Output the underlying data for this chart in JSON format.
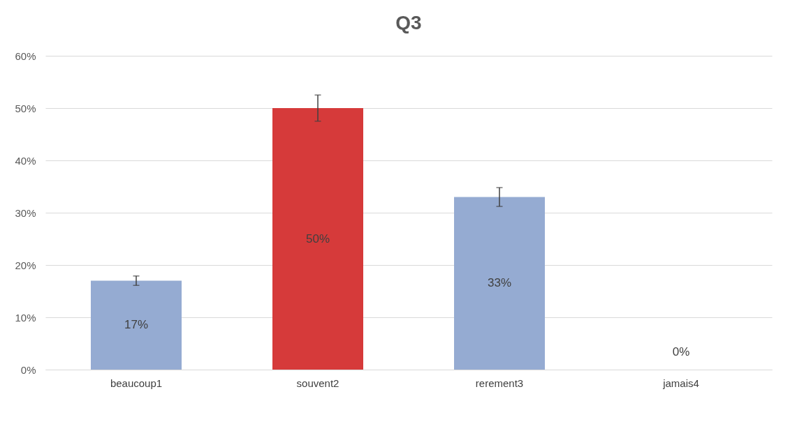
{
  "chart_data": {
    "type": "bar",
    "title": "Q3",
    "categories": [
      "beaucoup1",
      "souvent2",
      "rerement3",
      "jamais4"
    ],
    "values": [
      17,
      50,
      33,
      0
    ],
    "colors": [
      "#95abd2",
      "#d63a3a",
      "#95abd2",
      "#95abd2"
    ],
    "errors": [
      0.9,
      2.5,
      1.8,
      null
    ],
    "value_labels": [
      "17%",
      "50%",
      "33%",
      "0%"
    ],
    "ylim": [
      0,
      60
    ],
    "yticks": [
      {
        "value": 0,
        "label": "0%"
      },
      {
        "value": 10,
        "label": "10%"
      },
      {
        "value": 20,
        "label": "20%"
      },
      {
        "value": 30,
        "label": "30%"
      },
      {
        "value": 40,
        "label": "40%"
      },
      {
        "value": 50,
        "label": "50%"
      },
      {
        "value": 60,
        "label": "60%"
      }
    ],
    "grid": "y"
  }
}
